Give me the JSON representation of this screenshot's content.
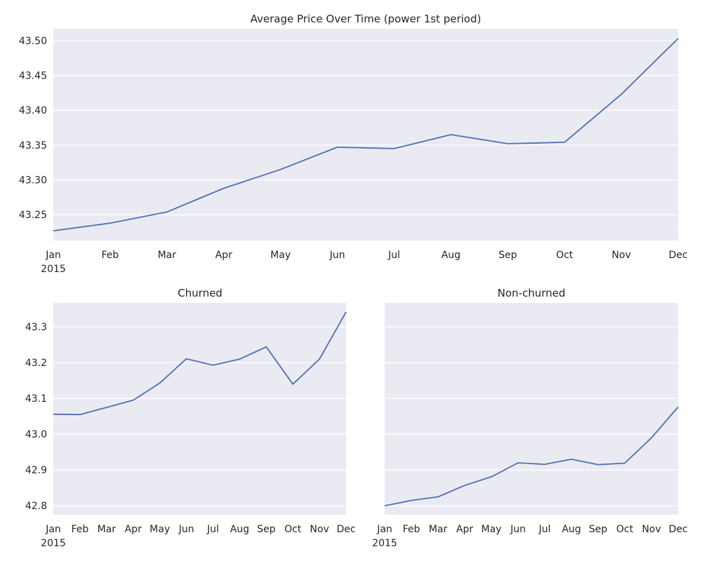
{
  "chart_data": [
    {
      "type": "line",
      "title": "Average Price Over Time (power 1st period)",
      "xlabel": "",
      "ylabel": "",
      "x": [
        "Jan",
        "Feb",
        "Mar",
        "Apr",
        "May",
        "Jun",
        "Jul",
        "Aug",
        "Sep",
        "Oct",
        "Nov",
        "Dec"
      ],
      "year_label": "2015",
      "values": [
        43.227,
        43.238,
        43.254,
        43.288,
        43.315,
        43.347,
        43.345,
        43.365,
        43.352,
        43.354,
        43.423,
        43.503
      ],
      "yticks": [
        "43.25",
        "43.30",
        "43.35",
        "43.40",
        "43.45",
        "43.50"
      ],
      "ylim": [
        43.213,
        43.517
      ],
      "grid": true
    },
    {
      "type": "line",
      "title": "Churned",
      "xlabel": "",
      "ylabel": "",
      "x": [
        "Jan",
        "Feb",
        "Mar",
        "Apr",
        "May",
        "Jun",
        "Jul",
        "Aug",
        "Sep",
        "Oct",
        "Nov",
        "Dec"
      ],
      "year_label": "2015",
      "values": [
        43.056,
        43.055,
        43.075,
        43.095,
        43.143,
        43.211,
        43.193,
        43.21,
        43.244,
        43.14,
        43.21,
        43.342
      ],
      "yticks": [
        "42.8",
        "42.9",
        "43.0",
        "43.1",
        "43.2",
        "43.3"
      ],
      "ylim": [
        42.775,
        43.367
      ],
      "grid": true
    },
    {
      "type": "line",
      "title": "Non-churned",
      "xlabel": "",
      "ylabel": "",
      "x": [
        "Jan",
        "Feb",
        "Mar",
        "Apr",
        "May",
        "Jun",
        "Jul",
        "Aug",
        "Sep",
        "Oct",
        "Nov",
        "Dec"
      ],
      "year_label": "2015",
      "values": [
        42.8,
        42.815,
        42.825,
        42.857,
        42.881,
        42.92,
        42.916,
        42.93,
        42.915,
        42.919,
        42.99,
        43.076
      ],
      "yticks": [],
      "ylim": [
        42.775,
        43.367
      ],
      "grid": true
    }
  ],
  "colors": {
    "background": "#eaeaf2",
    "grid": "#ffffff",
    "line": "#4c72b0",
    "text": "#262626"
  }
}
